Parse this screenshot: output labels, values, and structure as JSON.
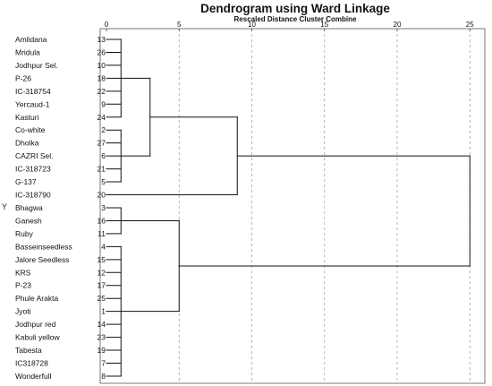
{
  "title": "Dendrogram using Ward Linkage",
  "subtitle": "Rescaled Distance Cluster Combine",
  "y_axis_label": "Y",
  "axis_ticks": [
    0,
    5,
    10,
    15,
    20,
    25
  ],
  "leaves": [
    {
      "label": "Amlidana",
      "id": "13"
    },
    {
      "label": "Mridula",
      "id": "26"
    },
    {
      "label": "Jodhpur Sel.",
      "id": "10"
    },
    {
      "label": "P-26",
      "id": "18"
    },
    {
      "label": "IC-318754",
      "id": "22"
    },
    {
      "label": "Yercaud-1",
      "id": "9"
    },
    {
      "label": "Kasturi",
      "id": "24"
    },
    {
      "label": "Co-white",
      "id": "2"
    },
    {
      "label": "Dholka",
      "id": "27"
    },
    {
      "label": "CAZRI Sel.",
      "id": "6"
    },
    {
      "label": "IC-318723",
      "id": "21"
    },
    {
      "label": "G-137",
      "id": "5"
    },
    {
      "label": "IC-318790",
      "id": "20"
    },
    {
      "label": "Bhagwa",
      "id": "3"
    },
    {
      "label": "Ganesh",
      "id": "16"
    },
    {
      "label": "Ruby",
      "id": "11"
    },
    {
      "label": "Basseinseedless",
      "id": "4"
    },
    {
      "label": "Jalore Seedless",
      "id": "15"
    },
    {
      "label": "KRS",
      "id": "12"
    },
    {
      "label": "P-23",
      "id": "17"
    },
    {
      "label": "Phule Arakta",
      "id": "25"
    },
    {
      "label": "Jyoti",
      "id": "1"
    },
    {
      "label": "Jodhpur red",
      "id": "14"
    },
    {
      "label": "Kabuli yellow",
      "id": "23"
    },
    {
      "label": "Tabesta",
      "id": "19"
    },
    {
      "label": "IC318728",
      "id": "7"
    },
    {
      "label": "Wonderfull",
      "id": "8"
    }
  ],
  "merges": [
    {
      "name": "cluster-a",
      "children": [
        0,
        1,
        2,
        3,
        4,
        5,
        6
      ],
      "distance": 1
    },
    {
      "name": "cluster-b",
      "children": [
        7,
        8,
        9,
        10,
        11
      ],
      "distance": 1
    },
    {
      "name": "cluster-ab",
      "children": [
        "cluster-a",
        "cluster-b"
      ],
      "distance": 3
    },
    {
      "name": "cluster-abc",
      "children": [
        "cluster-ab",
        12
      ],
      "distance": 9
    },
    {
      "name": "cluster-d",
      "children": [
        13,
        14,
        15
      ],
      "distance": 1
    },
    {
      "name": "cluster-e",
      "children": [
        16,
        17,
        18,
        19,
        20,
        21,
        22,
        23,
        24,
        25,
        26
      ],
      "distance": 1
    },
    {
      "name": "cluster-de",
      "children": [
        "cluster-d",
        "cluster-e"
      ],
      "distance": 5
    },
    {
      "name": "root",
      "children": [
        "cluster-abc",
        "cluster-de"
      ],
      "distance": 25
    }
  ]
}
